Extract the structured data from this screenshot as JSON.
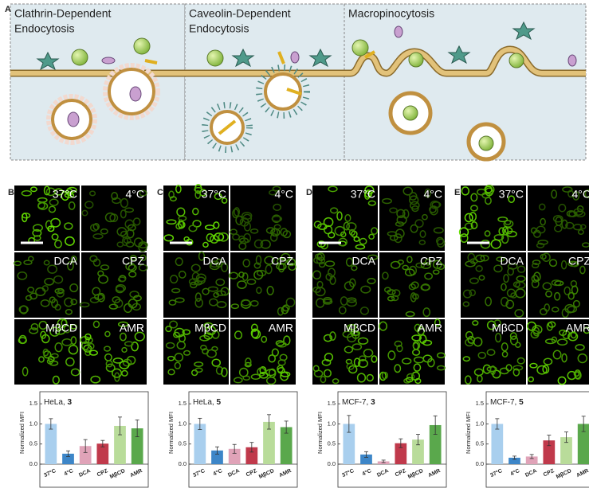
{
  "panel_a": {
    "label": "A",
    "sections": [
      [
        "Clathrin-Dependent",
        "Endocytosis"
      ],
      [
        "Caveolin-Dependent",
        "Endocytosis"
      ],
      [
        "Macropinocytosis"
      ]
    ]
  },
  "chart_data": [
    {
      "type": "bar",
      "panel": "B",
      "title": "HeLa,",
      "title_bold": "3",
      "ylabel": "Normalized MFI",
      "categories": [
        "37°C",
        "4°C",
        "DCA",
        "CPZ",
        "MβCD",
        "AMR"
      ],
      "values": [
        1.0,
        0.26,
        0.45,
        0.51,
        0.95,
        0.89
      ],
      "errors": [
        0.13,
        0.07,
        0.16,
        0.08,
        0.22,
        0.21
      ],
      "colors": [
        "#a9cfee",
        "#3d86c8",
        "#e0a3b8",
        "#c0394b",
        "#b9dc9a",
        "#5aa84c"
      ],
      "ylim": [
        0,
        1.8
      ],
      "yticks": [
        {
          "value": 0,
          "label": "0.0"
        },
        0.5,
        {
          "value": 1,
          "label": "1.0"
        },
        1.5
      ]
    },
    {
      "type": "bar",
      "panel": "C",
      "title": "HeLa,",
      "title_bold": "5",
      "ylabel": "Normalized MFI",
      "categories": [
        "37°C",
        "4°C",
        "DCA",
        "CPZ",
        "MβCD",
        "AMR"
      ],
      "values": [
        1.0,
        0.34,
        0.38,
        0.42,
        1.05,
        0.92
      ],
      "errors": [
        0.14,
        0.09,
        0.11,
        0.12,
        0.18,
        0.15
      ],
      "colors": [
        "#a9cfee",
        "#3d86c8",
        "#e0a3b8",
        "#c0394b",
        "#b9dc9a",
        "#5aa84c"
      ],
      "ylim": [
        0,
        1.8
      ],
      "yticks": [
        {
          "value": 0,
          "label": "0.0"
        },
        0.5,
        {
          "value": 1,
          "label": "1.0"
        },
        1.5
      ]
    },
    {
      "type": "bar",
      "panel": "D",
      "title": "MCF-7,",
      "title_bold": "3",
      "ylabel": "Normalized MFI",
      "categories": [
        "37°C",
        "4°C",
        "DCA",
        "CPZ",
        "MβCD",
        "AMR"
      ],
      "values": [
        1.0,
        0.24,
        0.07,
        0.52,
        0.61,
        0.97
      ],
      "errors": [
        0.21,
        0.07,
        0.03,
        0.11,
        0.13,
        0.23
      ],
      "colors": [
        "#a9cfee",
        "#3d86c8",
        "#e0a3b8",
        "#c0394b",
        "#b9dc9a",
        "#5aa84c"
      ],
      "ylim": [
        0,
        1.8
      ],
      "yticks": [
        {
          "value": 0,
          "label": "0.0"
        },
        0.5,
        {
          "value": 1,
          "label": "1.0"
        },
        1.5
      ]
    },
    {
      "type": "bar",
      "panel": "E",
      "title": "MCF-7,",
      "title_bold": "5",
      "ylabel": "Normalized MFI",
      "categories": [
        "37°C",
        "4°C",
        "DCA",
        "CPZ",
        "MβCD",
        "AMR"
      ],
      "values": [
        1.0,
        0.16,
        0.19,
        0.59,
        0.67,
        1.0
      ],
      "errors": [
        0.13,
        0.04,
        0.05,
        0.13,
        0.13,
        0.19
      ],
      "colors": [
        "#a9cfee",
        "#3d86c8",
        "#e0a3b8",
        "#c0394b",
        "#b9dc9a",
        "#5aa84c"
      ],
      "ylim": [
        0,
        1.8
      ],
      "yticks": [
        {
          "value": 0,
          "label": "0.0"
        },
        0.5,
        {
          "value": 1,
          "label": "1.0"
        },
        1.5
      ]
    }
  ]
}
